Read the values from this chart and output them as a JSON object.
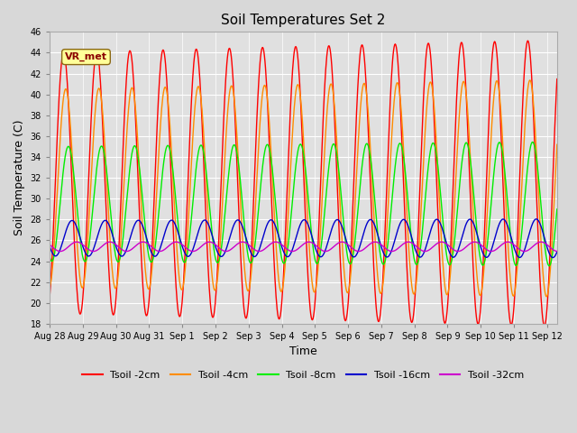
{
  "title": "Soil Temperatures Set 2",
  "xlabel": "Time",
  "ylabel": "Soil Temperature (C)",
  "ylim": [
    18,
    46
  ],
  "yticks": [
    18,
    20,
    22,
    24,
    26,
    28,
    30,
    32,
    34,
    36,
    38,
    40,
    42,
    44,
    46
  ],
  "x_start_day": 0,
  "x_end_day": 15.3,
  "n_points": 920,
  "series_order": [
    "Tsoil -2cm",
    "Tsoil -4cm",
    "Tsoil -8cm",
    "Tsoil -16cm",
    "Tsoil -32cm"
  ],
  "series": {
    "Tsoil -2cm": {
      "color": "#ff0000",
      "lw": 1.0,
      "amp": 12.5,
      "base": 31.5,
      "phase_rad": 0.0,
      "trend": 0.08
    },
    "Tsoil -4cm": {
      "color": "#ff8c00",
      "lw": 1.0,
      "amp": 9.5,
      "base": 31.0,
      "phase_rad": 0.4,
      "trend": 0.06
    },
    "Tsoil -8cm": {
      "color": "#00ee00",
      "lw": 1.0,
      "amp": 5.5,
      "base": 29.5,
      "phase_rad": 0.9,
      "trend": 0.03
    },
    "Tsoil -16cm": {
      "color": "#0000cc",
      "lw": 1.0,
      "amp": 1.7,
      "base": 26.2,
      "phase_rad": 1.6,
      "trend": 0.01
    },
    "Tsoil -32cm": {
      "color": "#cc00cc",
      "lw": 1.0,
      "amp": 0.45,
      "base": 25.4,
      "phase_rad": 2.5,
      "trend": 0.0
    }
  },
  "x_tick_labels": [
    "Aug 28",
    "Aug 29",
    "Aug 30",
    "Aug 31",
    "Sep 1",
    "Sep 2",
    "Sep 3",
    "Sep 4",
    "Sep 5",
    "Sep 6",
    "Sep 7",
    "Sep 8",
    "Sep 9",
    "Sep 10",
    "Sep 11",
    "Sep 12"
  ],
  "x_tick_positions": [
    0,
    1,
    2,
    3,
    4,
    5,
    6,
    7,
    8,
    9,
    10,
    11,
    12,
    13,
    14,
    15
  ],
  "fig_bg_color": "#d8d8d8",
  "plot_bg_color": "#e0e0e0",
  "grid_color": "#ffffff",
  "annotation_text": "VR_met",
  "annotation_fontsize": 8,
  "title_fontsize": 11,
  "xlabel_fontsize": 9,
  "ylabel_fontsize": 9,
  "tick_fontsize": 7,
  "legend_fontsize": 8
}
